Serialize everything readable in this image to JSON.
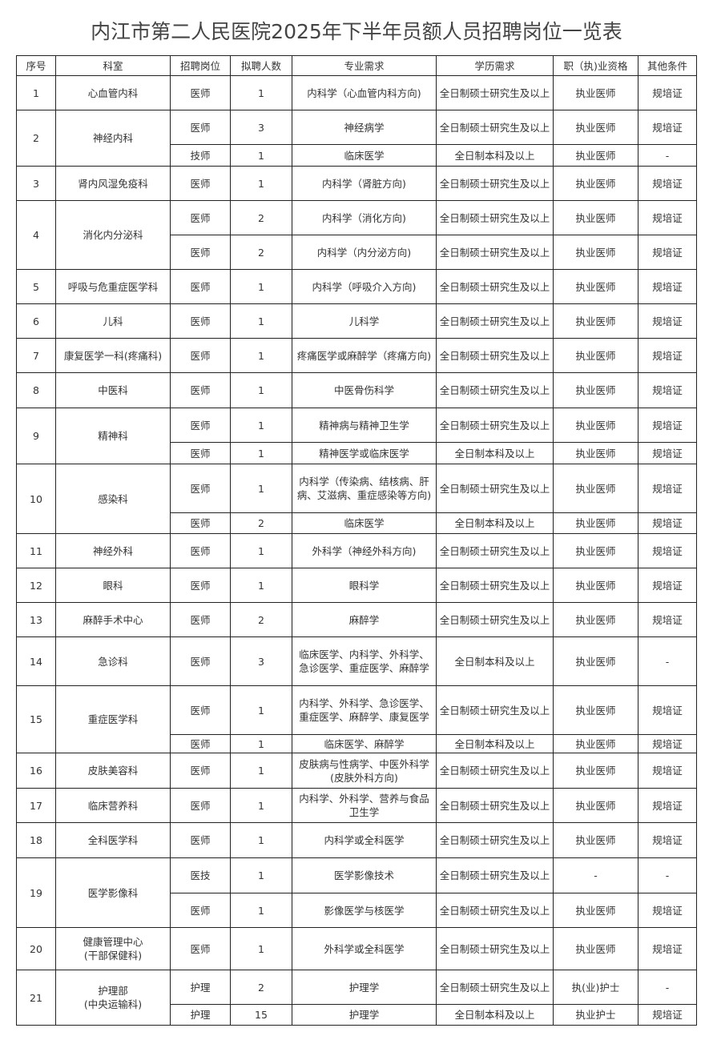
{
  "title": "内江市第二人民医院2025年下半年员额人员招聘岗位一览表",
  "headers": [
    "序号",
    "科室",
    "招聘岗位",
    "拟聘人数",
    "专业需求",
    "学历需求",
    "职（执)业资格",
    "其他条件"
  ],
  "departments": [
    {
      "no": "1",
      "name": "心血管内科",
      "positions": [
        [
          "医师",
          "1",
          "内科学（心血管内科方向)",
          "全日制硕士研究生及以上",
          "执业医师",
          "规培证"
        ]
      ]
    },
    {
      "no": "2",
      "name": "神经内科",
      "positions": [
        [
          "医师",
          "3",
          "神经病学",
          "全日制硕士研究生及以上",
          "执业医师",
          "规培证"
        ],
        [
          "技师",
          "1",
          "临床医学",
          "全日制本科及以上",
          "执业医师",
          "-"
        ]
      ]
    },
    {
      "no": "3",
      "name": "肾内风湿免疫科",
      "positions": [
        [
          "医师",
          "1",
          "内科学（肾脏方向)",
          "全日制硕士研究生及以上",
          "执业医师",
          "规培证"
        ]
      ]
    },
    {
      "no": "4",
      "name": "消化内分泌科",
      "positions": [
        [
          "医师",
          "2",
          "内科学（消化方向)",
          "全日制硕士研究生及以上",
          "执业医师",
          "规培证"
        ],
        [
          "医师",
          "2",
          "内科学（内分泌方向)",
          "全日制硕士研究生及以上",
          "执业医师",
          "规培证"
        ]
      ]
    },
    {
      "no": "5",
      "name": "呼吸与危重症医学科",
      "positions": [
        [
          "医师",
          "1",
          "内科学（呼吸介入方向)",
          "全日制硕士研究生及以上",
          "执业医师",
          "规培证"
        ]
      ]
    },
    {
      "no": "6",
      "name": "儿科",
      "positions": [
        [
          "医师",
          "1",
          "儿科学",
          "全日制硕士研究生及以上",
          "执业医师",
          "规培证"
        ]
      ]
    },
    {
      "no": "7",
      "name": "康复医学一科(疼痛科)",
      "positions": [
        [
          "医师",
          "1",
          "疼痛医学或麻醉学（疼痛方向)",
          "全日制硕士研究生及以上",
          "执业医师",
          "规培证"
        ]
      ]
    },
    {
      "no": "8",
      "name": "中医科",
      "positions": [
        [
          "医师",
          "1",
          "中医骨伤科学",
          "全日制硕士研究生及以上",
          "执业医师",
          "规培证"
        ]
      ]
    },
    {
      "no": "9",
      "name": "精神科",
      "positions": [
        [
          "医师",
          "1",
          "精神病与精神卫生学",
          "全日制硕士研究生及以上",
          "执业医师",
          "规培证"
        ],
        [
          "医师",
          "1",
          "精神医学或临床医学",
          "全日制本科及以上",
          "执业医师",
          "规培证"
        ]
      ]
    },
    {
      "no": "10",
      "name": "感染科",
      "positions": [
        [
          "医师",
          "1",
          "内科学（传染病、结核病、肝病、艾滋病、重症感染等方向)",
          "全日制硕士研究生及以上",
          "执业医师",
          "规培证"
        ],
        [
          "医师",
          "2",
          "临床医学",
          "全日制本科及以上",
          "执业医师",
          "规培证"
        ]
      ]
    },
    {
      "no": "11",
      "name": "神经外科",
      "positions": [
        [
          "医师",
          "1",
          "外科学（神经外科方向)",
          "全日制硕士研究生及以上",
          "执业医师",
          "规培证"
        ]
      ]
    },
    {
      "no": "12",
      "name": "眼科",
      "positions": [
        [
          "医师",
          "1",
          "眼科学",
          "全日制硕士研究生及以上",
          "执业医师",
          "规培证"
        ]
      ]
    },
    {
      "no": "13",
      "name": "麻醉手术中心",
      "positions": [
        [
          "医师",
          "2",
          "麻醉学",
          "全日制硕士研究生及以上",
          "执业医师",
          "规培证"
        ]
      ]
    },
    {
      "no": "14",
      "name": "急诊科",
      "positions": [
        [
          "医师",
          "3",
          "临床医学、内科学、外科学、急诊医学、重症医学、麻醉学",
          "全日制本科及以上",
          "执业医师",
          "-"
        ]
      ]
    },
    {
      "no": "15",
      "name": "重症医学科",
      "positions": [
        [
          "医师",
          "1",
          "内科学、外科学、急诊医学、重症医学、麻醉学、康复医学",
          "全日制硕士研究生及以上",
          "执业医师",
          "规培证"
        ],
        [
          "医师",
          "1",
          "临床医学、麻醉学",
          "全日制本科及以上",
          "执业医师",
          "规培证"
        ]
      ]
    },
    {
      "no": "16",
      "name": "皮肤美容科",
      "positions": [
        [
          "医师",
          "1",
          "皮肤病与性病学、中医外科学(皮肤外科方向)",
          "全日制硕士研究生及以上",
          "执业医师",
          "规培证"
        ]
      ]
    },
    {
      "no": "17",
      "name": "临床营养科",
      "positions": [
        [
          "医师",
          "1",
          "内科学、外科学、营养与食品卫生学",
          "全日制硕士研究生及以上",
          "执业医师",
          "规培证"
        ]
      ]
    },
    {
      "no": "18",
      "name": "全科医学科",
      "positions": [
        [
          "医师",
          "1",
          "内科学或全科医学",
          "全日制硕士研究生及以上",
          "执业医师",
          "规培证"
        ]
      ]
    },
    {
      "no": "19",
      "name": "医学影像科",
      "positions": [
        [
          "医技",
          "1",
          "医学影像技术",
          "全日制硕士研究生及以上",
          "-",
          "-"
        ],
        [
          "医师",
          "1",
          "影像医学与核医学",
          "全日制硕士研究生及以上",
          "执业医师",
          "规培证"
        ]
      ]
    },
    {
      "no": "20",
      "name": "健康管理中心\n(干部保健科)",
      "positions": [
        [
          "医师",
          "1",
          "外科学或全科医学",
          "全日制硕士研究生及以上",
          "执业医师",
          "规培证"
        ]
      ]
    },
    {
      "no": "21",
      "name": "护理部\n(中央运输科)",
      "positions": [
        [
          "护理",
          "2",
          "护理学",
          "全日制硕士研究生及以上",
          "执(业)护士",
          "-"
        ],
        [
          "护理",
          "15",
          "护理学",
          "全日制本科及以上",
          "执业护士",
          "规培证"
        ]
      ]
    }
  ]
}
